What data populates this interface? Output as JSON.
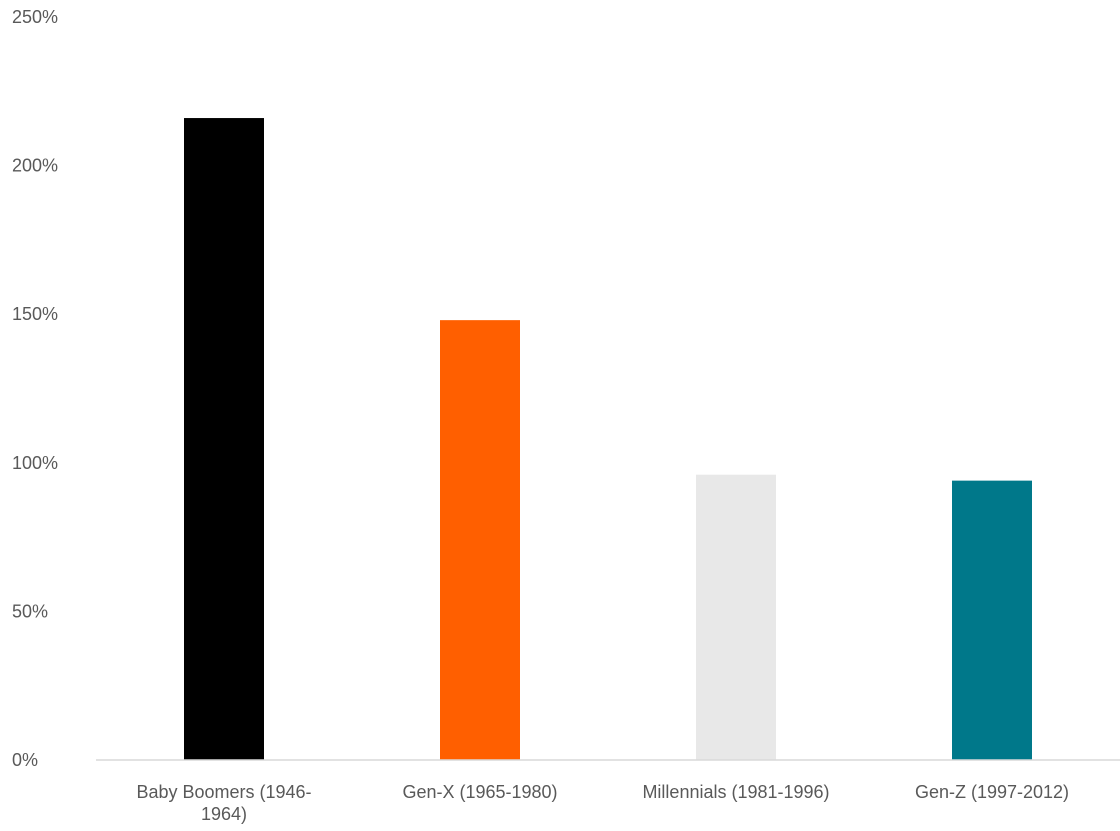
{
  "chart_data": {
    "type": "bar",
    "title": "",
    "xlabel": "",
    "ylabel": "",
    "categories": [
      [
        "Baby Boomers (1946-",
        "1964)"
      ],
      [
        "Gen-X (1965-1980)"
      ],
      [
        "Millennials (1981-1996)"
      ],
      [
        "Gen-Z (1997-2012)"
      ]
    ],
    "values": [
      216,
      148,
      96,
      94
    ],
    "colors": [
      "#000000",
      "#ff5f00",
      "#e8e8e8",
      "#00788a"
    ],
    "y_ticks": [
      "0%",
      "50%",
      "100%",
      "150%",
      "200%",
      "250%"
    ],
    "y_tick_values": [
      0,
      50,
      100,
      150,
      200,
      250
    ],
    "ylim": [
      0,
      250
    ],
    "unit": "%",
    "grid": false,
    "legend": "none"
  }
}
